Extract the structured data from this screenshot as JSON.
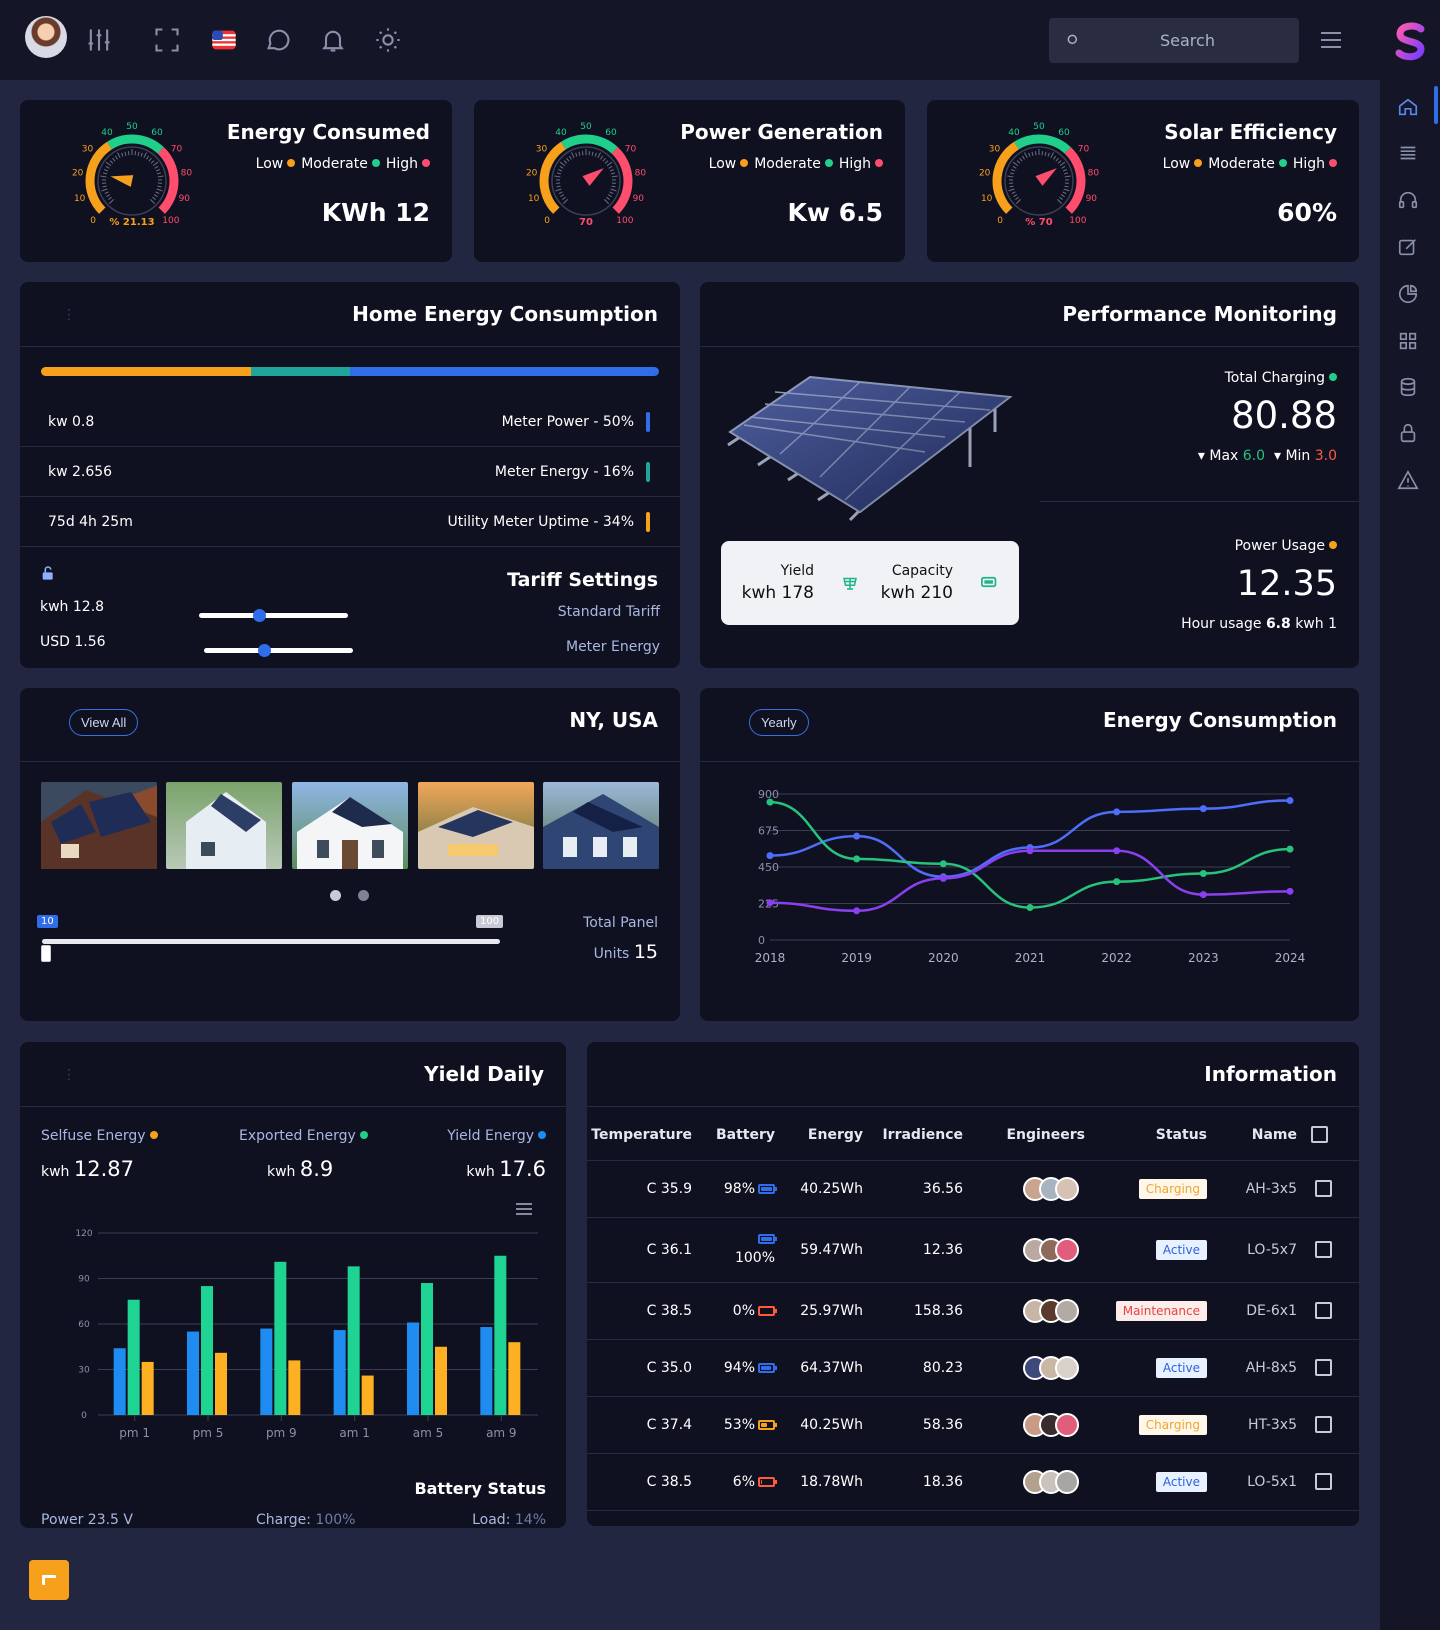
{
  "header": {
    "search_placeholder": "Search",
    "icons": [
      "avatar",
      "sliders-icon",
      "fullscreen-icon",
      "us-flag-icon",
      "chat-icon",
      "bell-icon",
      "sun-icon",
      "search-icon",
      "menu-icon",
      "brand-logo"
    ]
  },
  "sidebar": {
    "icons": [
      "home-icon",
      "list-icon",
      "headset-icon",
      "edit-icon",
      "pie-chart-icon",
      "grid-icon",
      "database-icon",
      "lock-icon",
      "warning-icon"
    ],
    "active": "home-icon"
  },
  "kpis": [
    {
      "title": "Energy Consumed",
      "levels": [
        "Low",
        "Moderate",
        "High"
      ],
      "value": "KWh 12",
      "gauge_label": "% 21.13",
      "gauge_value": 21.13
    },
    {
      "title": "Power Generation",
      "levels": [
        "Low",
        "Moderate",
        "High"
      ],
      "value": "Kw 6.5",
      "gauge_label": "70",
      "gauge_value": 70
    },
    {
      "title": "Solar Efficiency",
      "levels": [
        "Low",
        "Moderate",
        "High"
      ],
      "value": "60%",
      "gauge_label": "% 70",
      "gauge_value": 70
    }
  ],
  "gauge_ticks": [
    "0",
    "10",
    "20",
    "30",
    "40",
    "50",
    "60",
    "70",
    "80",
    "90",
    "100"
  ],
  "colors": {
    "low": "#f7a01c",
    "moderate": "#1fcf8a",
    "high": "#ff4d6d",
    "blue": "#2f6ee8",
    "teal": "#1fa39a",
    "orange": "#f7a01c"
  },
  "home_energy": {
    "title": "Home Energy Consumption",
    "bar_shares": [
      34,
      16,
      50
    ],
    "rows": [
      {
        "left": "kw 0.8",
        "right": "Meter Power - 50%",
        "color": "#2f6ee8"
      },
      {
        "left": "kw 2.656",
        "right": "Meter Energy - 16%",
        "color": "#1fa39a"
      },
      {
        "left": "75d 4h 25m",
        "right": "Utility Meter Uptime - 34%",
        "color": "#f7a01c"
      }
    ],
    "tariff": {
      "title": "Tariff Settings",
      "kwh": "kwh 12.8",
      "usd": "USD 1.56",
      "standard": "Standard Tariff",
      "meter": "Meter Energy",
      "slider1": 0.4,
      "slider2": 0.4
    }
  },
  "performance": {
    "title": "Performance Monitoring",
    "total_charging_label": "Total Charging",
    "total_charging": "80.88",
    "max_label": "Max",
    "max": "6.0",
    "min_label": "Min",
    "min": "3.0",
    "power_usage_label": "Power Usage",
    "power_usage": "12.35",
    "hour_usage_label": "Hour usage",
    "hour_usage_value": "6.8",
    "hour_usage_unit": "kwh 1",
    "yield_label": "Yield",
    "yield_value": "kwh 178",
    "capacity_label": "Capacity",
    "capacity_value": "kwh 210"
  },
  "location": {
    "title": "NY, USA",
    "view_all": "View All",
    "range_min": "10",
    "range_max": "100",
    "total_panel": "Total Panel",
    "units_label": "Units",
    "units_value": "15"
  },
  "energy_chart": {
    "title": "Energy Consumption",
    "period": "Yearly",
    "chart_data": {
      "type": "line",
      "x": [
        "2018",
        "2019",
        "2020",
        "2021",
        "2022",
        "2023",
        "2024"
      ],
      "y_ticks": [
        "0",
        "225",
        "450",
        "675",
        "900"
      ],
      "ylim": [
        0,
        900
      ],
      "series": [
        {
          "values": [
            520,
            640,
            390,
            570,
            790,
            810,
            860
          ],
          "color": "#4f6ef7"
        },
        {
          "values": [
            850,
            500,
            470,
            200,
            360,
            410,
            560
          ],
          "color": "#27c27b"
        },
        {
          "values": [
            230,
            180,
            380,
            550,
            550,
            280,
            300
          ],
          "color": "#8a3ff0"
        }
      ]
    }
  },
  "yield_daily": {
    "title": "Yield Daily",
    "selfuse_label": "Selfuse Energy",
    "selfuse_unit": "kwh",
    "selfuse_value": "12.87",
    "exported_label": "Exported Energy",
    "exported_unit": "kwh",
    "exported_value": "8.9",
    "yield_label": "Yield Energy",
    "yield_unit": "kwh",
    "yield_value": "17.6",
    "battery_status": "Battery Status",
    "power_label": "Power",
    "power_value": "23.5 V",
    "charge_label": "Charge:",
    "charge_value": "100%",
    "load_label": "Load:",
    "load_value": "14%",
    "chart_data": {
      "type": "bar",
      "categories": [
        "pm 1",
        "pm 5",
        "pm 9",
        "am 1",
        "am 5",
        "am 9"
      ],
      "y_ticks": [
        "0",
        "30",
        "60",
        "90",
        "120"
      ],
      "ylim": [
        0,
        120
      ],
      "series": [
        {
          "values": [
            44,
            55,
            57,
            56,
            61,
            58
          ],
          "color": "#1e8cf0"
        },
        {
          "values": [
            76,
            85,
            101,
            98,
            87,
            105
          ],
          "color": "#1fd492"
        },
        {
          "values": [
            35,
            41,
            36,
            26,
            45,
            48
          ],
          "color": "#fdb022"
        }
      ]
    }
  },
  "information": {
    "title": "Information",
    "columns": [
      "Temperature",
      "Battery",
      "Energy",
      "Irradience",
      "Engineers",
      "Status",
      "Name"
    ],
    "rows": [
      {
        "temp": "C 35.9",
        "battery": "98%",
        "level": 0.98,
        "energy": "40.25Wh",
        "irr": "36.56",
        "status": "Charging",
        "name": "AH-3x5"
      },
      {
        "temp": "C 36.1",
        "battery": "100%",
        "level": 1.0,
        "energy": "59.47Wh",
        "irr": "12.36",
        "status": "Active",
        "name": "LO-5x7"
      },
      {
        "temp": "C 38.5",
        "battery": "0%",
        "level": 0.0,
        "energy": "25.97Wh",
        "irr": "158.36",
        "status": "Maintenance",
        "name": "DE-6x1"
      },
      {
        "temp": "C 35.0",
        "battery": "94%",
        "level": 0.94,
        "energy": "64.37Wh",
        "irr": "80.23",
        "status": "Active",
        "name": "AH-8x5"
      },
      {
        "temp": "C 37.4",
        "battery": "53%",
        "level": 0.53,
        "energy": "40.25Wh",
        "irr": "58.36",
        "status": "Charging",
        "name": "HT-3x5"
      },
      {
        "temp": "C 38.5",
        "battery": "6%",
        "level": 0.06,
        "energy": "18.78Wh",
        "irr": "18.36",
        "status": "Active",
        "name": "LO-5x1"
      }
    ]
  }
}
